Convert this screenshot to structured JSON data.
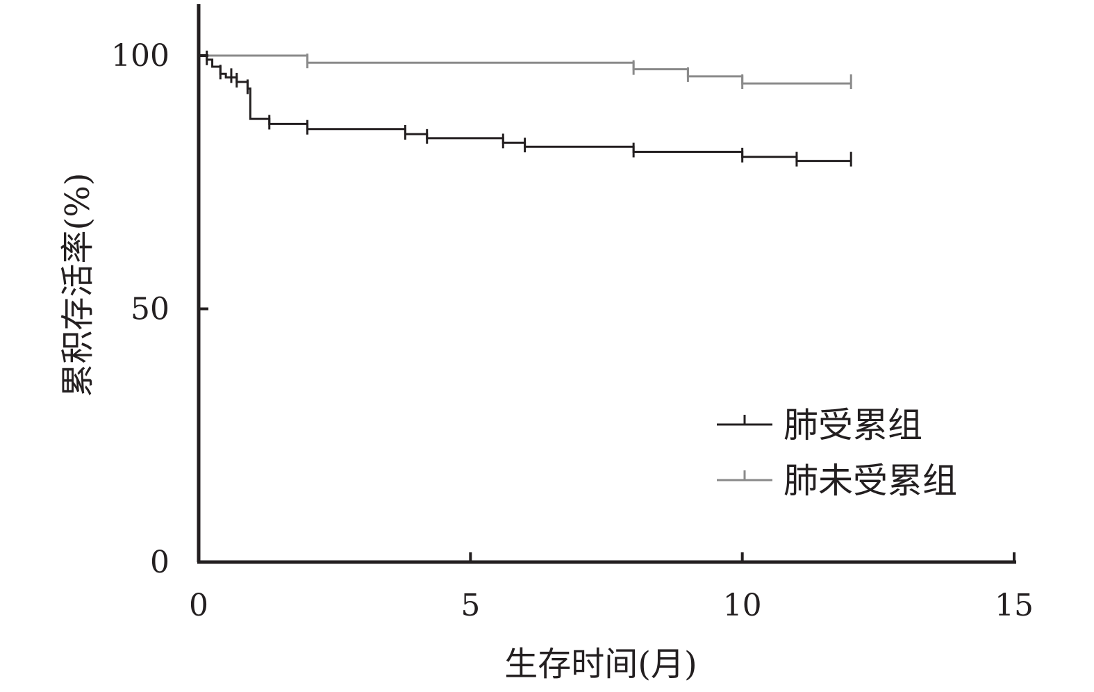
{
  "chart_data": {
    "type": "line",
    "step": true,
    "title": "",
    "xlabel": "生存时间(月)",
    "ylabel": "累积存活率(%)",
    "xlim": [
      0,
      15
    ],
    "ylim": [
      0,
      110
    ],
    "x_ticks": [
      0,
      5,
      10,
      15
    ],
    "y_ticks": [
      0,
      50,
      100
    ],
    "grid": false,
    "legend_position": "bottom-right",
    "series": [
      {
        "name": "肺受累组",
        "color": "#231f20",
        "steps": [
          [
            0,
            100
          ],
          [
            0.15,
            99.2
          ],
          [
            0.25,
            97.8
          ],
          [
            0.4,
            96.4
          ],
          [
            0.5,
            95.7
          ],
          [
            0.7,
            94.8
          ],
          [
            0.9,
            93.5
          ],
          [
            0.95,
            87.5
          ],
          [
            1.3,
            86.5
          ],
          [
            2.0,
            85.5
          ],
          [
            3.8,
            84.5
          ],
          [
            4.2,
            83.7
          ],
          [
            5.6,
            82.8
          ],
          [
            6.0,
            82.0
          ],
          [
            8.0,
            81.0
          ],
          [
            10.0,
            80.0
          ],
          [
            11.0,
            79.2
          ],
          [
            12.0,
            79.2
          ]
        ],
        "censors": [
          0.15,
          0.4,
          0.6,
          0.7,
          0.9,
          1.3,
          2.0,
          3.8,
          4.2,
          5.6,
          6.0,
          8.0,
          10.0,
          11.0,
          12.0
        ]
      },
      {
        "name": "肺未受累组",
        "color": "#8a8a8a",
        "steps": [
          [
            0,
            100
          ],
          [
            2.0,
            98.6
          ],
          [
            8.0,
            97.3
          ],
          [
            9.0,
            95.9
          ],
          [
            10.0,
            94.5
          ],
          [
            12.0,
            94.5
          ]
        ],
        "censors": [
          2.0,
          8.0,
          9.0,
          10.0,
          12.0
        ]
      }
    ]
  }
}
